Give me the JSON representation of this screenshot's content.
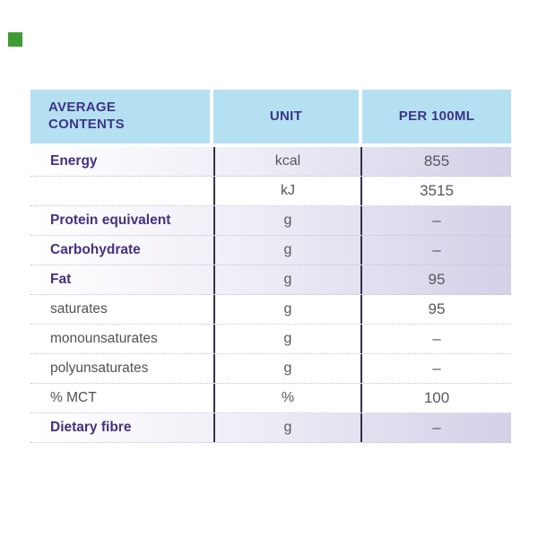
{
  "brand_mark": {
    "color": "#3F9C35"
  },
  "table": {
    "header": {
      "col1": "AVERAGE CONTENTS",
      "col2": "UNIT",
      "col3": "PER 100ML"
    },
    "rows": [
      {
        "label": "Energy",
        "unit": "kcal",
        "value": "855",
        "emphasis": true,
        "shaded": true
      },
      {
        "label": "",
        "unit": "kJ",
        "value": "3515",
        "emphasis": false,
        "shaded": false
      },
      {
        "label": "Protein equivalent",
        "unit": "g",
        "value": "–",
        "emphasis": true,
        "shaded": true
      },
      {
        "label": "Carbohydrate",
        "unit": "g",
        "value": "–",
        "emphasis": true,
        "shaded": true
      },
      {
        "label": "Fat",
        "unit": "g",
        "value": "95",
        "emphasis": true,
        "shaded": true
      },
      {
        "label": "saturates",
        "unit": "g",
        "value": "95",
        "emphasis": false,
        "shaded": false
      },
      {
        "label": "monounsaturates",
        "unit": "g",
        "value": "–",
        "emphasis": false,
        "shaded": false
      },
      {
        "label": "polyunsaturates",
        "unit": "g",
        "value": "–",
        "emphasis": false,
        "shaded": false
      },
      {
        "label": "% MCT",
        "unit": "%",
        "value": "100",
        "emphasis": false,
        "shaded": false
      },
      {
        "label": "Dietary fibre",
        "unit": "g",
        "value": "–",
        "emphasis": true,
        "shaded": true
      }
    ]
  },
  "colors": {
    "header_bg": "#B4E0F2",
    "header_text": "#3D3487",
    "label_emphasis": "#46307F",
    "label_regular": "#515257",
    "value_text": "#56575C",
    "row_shade": "#D3D0E8",
    "column_divider": "#35304E",
    "row_divider": "#C6C2D8",
    "brand_green": "#3F9C35"
  }
}
